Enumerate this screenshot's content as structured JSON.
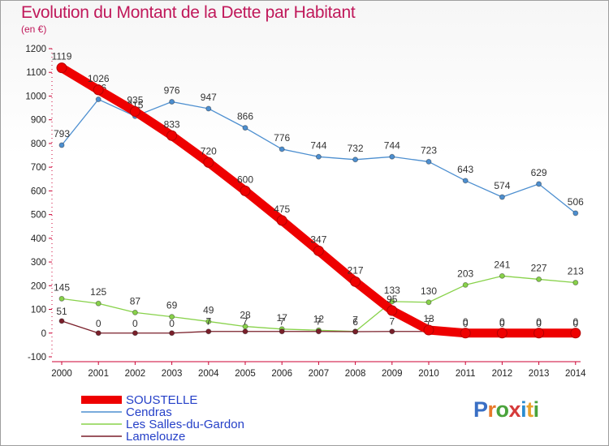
{
  "header": {
    "title": "Evolution du Montant de la Dette par Habitant",
    "subtitle": "(en €)"
  },
  "brand": {
    "letters": [
      "P",
      "r",
      "o",
      "x",
      "i",
      "t",
      "i"
    ],
    "colors": [
      "#3a6fc4",
      "#e8792b",
      "#4aa33b",
      "#d53a3a",
      "#2a8bd0",
      "#e8a22b",
      "#4aa33b"
    ]
  },
  "chart_data": {
    "type": "line",
    "title": "Evolution du Montant de la Dette par Habitant",
    "ylabel": "(en €)",
    "x": [
      "2000",
      "2001",
      "2002",
      "2003",
      "2004",
      "2005",
      "2006",
      "2007",
      "2008",
      "2009",
      "2010",
      "2011",
      "2012",
      "2013",
      "2014"
    ],
    "ylim": [
      -100,
      1200
    ],
    "yticks": [
      "-100",
      "0",
      "100",
      "200",
      "300",
      "400",
      "500",
      "600",
      "700",
      "800",
      "900",
      "1000",
      "1100",
      "1200"
    ],
    "grid": false,
    "legend": "bottom-left",
    "series": [
      {
        "name": "SOUSTELLE",
        "color": "#ee0000",
        "values": [
          1119,
          1026,
          935,
          833,
          720,
          600,
          475,
          347,
          217,
          95,
          13,
          0,
          0,
          0,
          0
        ],
        "labels": [
          "1119",
          "1026",
          "935",
          "833",
          "720",
          "600",
          "475",
          "347",
          "217",
          "95",
          "13",
          "0",
          "0",
          "0",
          "0"
        ]
      },
      {
        "name": "Cendras",
        "color": "#4d8fd0",
        "values": [
          793,
          986,
          915,
          976,
          947,
          866,
          776,
          744,
          732,
          744,
          723,
          643,
          574,
          629,
          506
        ],
        "labels": [
          "793",
          "986",
          "915",
          "976",
          "947",
          "866",
          "776",
          "744",
          "732",
          "744",
          "723",
          "643",
          "574",
          "629",
          "506"
        ]
      },
      {
        "name": "Les Salles-du-Gardon",
        "color": "#88d24a",
        "values": [
          145,
          125,
          87,
          69,
          49,
          28,
          17,
          12,
          7,
          133,
          130,
          203,
          241,
          227,
          213
        ],
        "labels": [
          "145",
          "125",
          "87",
          "69",
          "49",
          "28",
          "17",
          "12",
          "7",
          "133",
          "130",
          "203",
          "241",
          "227",
          "213"
        ]
      },
      {
        "name": "Lamelouze",
        "color": "#7a1f2a",
        "values": [
          51,
          0,
          0,
          0,
          7,
          7,
          7,
          7,
          6,
          7,
          7,
          0,
          0,
          0,
          0
        ],
        "labels": [
          "51",
          "0",
          "0",
          "0",
          "7",
          "7",
          "7",
          "7",
          "6",
          "7",
          "7",
          "0",
          "0",
          "0",
          "0"
        ]
      }
    ]
  }
}
